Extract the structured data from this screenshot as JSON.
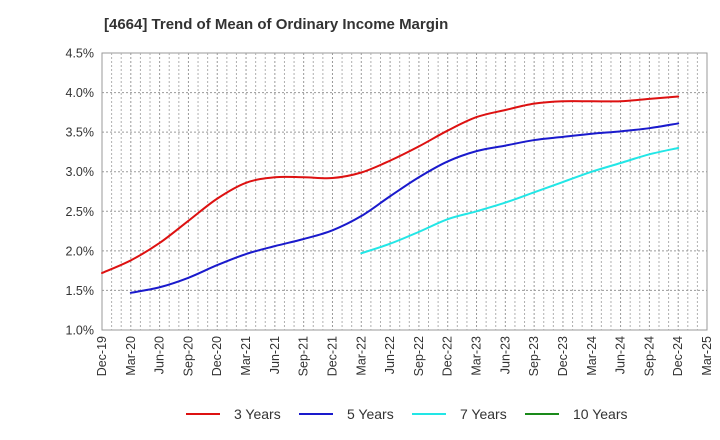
{
  "title": "[4664]  Trend of Mean of Ordinary Income Margin",
  "chart_data": {
    "type": "line",
    "title": "[4664]  Trend of Mean of Ordinary Income Margin",
    "xlabel": "",
    "ylabel": "",
    "ylim": [
      1.0,
      4.5
    ],
    "y_ticks": [
      "1.0%",
      "1.5%",
      "2.0%",
      "2.5%",
      "3.0%",
      "3.5%",
      "4.0%",
      "4.5%"
    ],
    "x_ticks": [
      "Dec-19",
      "Mar-20",
      "Jun-20",
      "Sep-20",
      "Dec-20",
      "Mar-21",
      "Jun-21",
      "Sep-21",
      "Dec-21",
      "Mar-22",
      "Jun-22",
      "Sep-22",
      "Dec-22",
      "Mar-23",
      "Jun-23",
      "Sep-23",
      "Dec-23",
      "Mar-24",
      "Jun-24",
      "Sep-24",
      "Dec-24",
      "Mar-25"
    ],
    "grid": true,
    "legend_position": "bottom",
    "series": [
      {
        "name": "3 Years",
        "color": "#dd1111",
        "points": [
          {
            "x": "Dec-19",
            "y": 1.72
          },
          {
            "x": "Mar-20",
            "y": 1.88
          },
          {
            "x": "Jun-20",
            "y": 2.1
          },
          {
            "x": "Sep-20",
            "y": 2.38
          },
          {
            "x": "Dec-20",
            "y": 2.66
          },
          {
            "x": "Mar-21",
            "y": 2.86
          },
          {
            "x": "Jun-21",
            "y": 2.93
          },
          {
            "x": "Sep-21",
            "y": 2.93
          },
          {
            "x": "Dec-21",
            "y": 2.92
          },
          {
            "x": "Mar-22",
            "y": 2.99
          },
          {
            "x": "Jun-22",
            "y": 3.14
          },
          {
            "x": "Sep-22",
            "y": 3.32
          },
          {
            "x": "Dec-22",
            "y": 3.52
          },
          {
            "x": "Mar-23",
            "y": 3.69
          },
          {
            "x": "Jun-23",
            "y": 3.78
          },
          {
            "x": "Sep-23",
            "y": 3.86
          },
          {
            "x": "Dec-23",
            "y": 3.89
          },
          {
            "x": "Mar-24",
            "y": 3.89
          },
          {
            "x": "Jun-24",
            "y": 3.89
          },
          {
            "x": "Sep-24",
            "y": 3.92
          },
          {
            "x": "Dec-24",
            "y": 3.95
          }
        ]
      },
      {
        "name": "5 Years",
        "color": "#1a1acc",
        "points": [
          {
            "x": "Mar-20",
            "y": 1.47
          },
          {
            "x": "Jun-20",
            "y": 1.54
          },
          {
            "x": "Sep-20",
            "y": 1.66
          },
          {
            "x": "Dec-20",
            "y": 1.82
          },
          {
            "x": "Mar-21",
            "y": 1.96
          },
          {
            "x": "Jun-21",
            "y": 2.06
          },
          {
            "x": "Sep-21",
            "y": 2.15
          },
          {
            "x": "Dec-21",
            "y": 2.26
          },
          {
            "x": "Mar-22",
            "y": 2.44
          },
          {
            "x": "Jun-22",
            "y": 2.69
          },
          {
            "x": "Sep-22",
            "y": 2.93
          },
          {
            "x": "Dec-22",
            "y": 3.13
          },
          {
            "x": "Mar-23",
            "y": 3.26
          },
          {
            "x": "Jun-23",
            "y": 3.33
          },
          {
            "x": "Sep-23",
            "y": 3.4
          },
          {
            "x": "Dec-23",
            "y": 3.44
          },
          {
            "x": "Mar-24",
            "y": 3.48
          },
          {
            "x": "Jun-24",
            "y": 3.51
          },
          {
            "x": "Sep-24",
            "y": 3.55
          },
          {
            "x": "Dec-24",
            "y": 3.61
          }
        ]
      },
      {
        "name": "7 Years",
        "color": "#22e6e6",
        "points": [
          {
            "x": "Mar-22",
            "y": 1.97
          },
          {
            "x": "Jun-22",
            "y": 2.09
          },
          {
            "x": "Sep-22",
            "y": 2.24
          },
          {
            "x": "Dec-22",
            "y": 2.4
          },
          {
            "x": "Mar-23",
            "y": 2.5
          },
          {
            "x": "Jun-23",
            "y": 2.61
          },
          {
            "x": "Sep-23",
            "y": 2.74
          },
          {
            "x": "Dec-23",
            "y": 2.87
          },
          {
            "x": "Mar-24",
            "y": 3.0
          },
          {
            "x": "Jun-24",
            "y": 3.11
          },
          {
            "x": "Sep-24",
            "y": 3.22
          },
          {
            "x": "Dec-24",
            "y": 3.3
          }
        ]
      },
      {
        "name": "10 Years",
        "color": "#1a8a1a",
        "points": []
      }
    ]
  }
}
